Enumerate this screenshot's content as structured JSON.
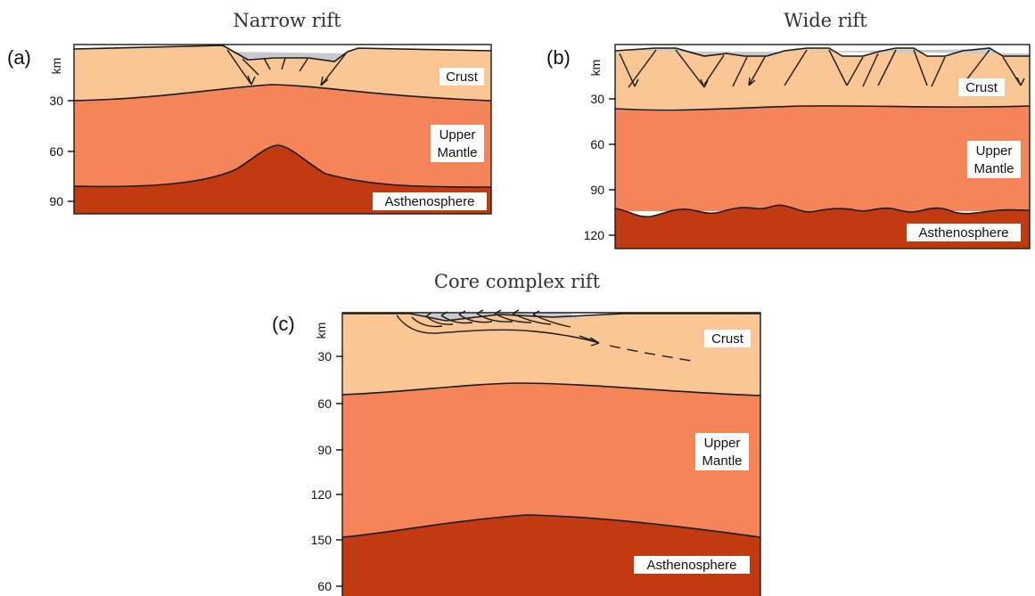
{
  "colors": {
    "crust": "#f9c694",
    "upper_mantle": "#f58458",
    "asthenosphere": "#c23a10",
    "sediment": "#c6cacf",
    "outline": "#1a1a1a"
  },
  "panels": [
    {
      "id": "a",
      "label": "(a)",
      "title": "Narrow rift",
      "unit": "km",
      "ticks": [
        "30",
        "60",
        "90"
      ],
      "layers": {
        "crust": "Crust",
        "upper_mantle": [
          "Upper",
          "Mantle"
        ],
        "asthenosphere": "Asthenosphere"
      }
    },
    {
      "id": "b",
      "label": "(b)",
      "title": "Wide rift",
      "unit": "km",
      "ticks": [
        "30",
        "60",
        "90",
        "120"
      ],
      "layers": {
        "crust": "Crust",
        "upper_mantle": [
          "Upper",
          "Mantle"
        ],
        "asthenosphere": "Asthenosphere"
      }
    },
    {
      "id": "c",
      "label": "(c)",
      "title": "Core complex rift",
      "unit": "km",
      "ticks": [
        "30",
        "60",
        "90",
        "120",
        "150",
        "60"
      ],
      "layers": {
        "crust": "Crust",
        "upper_mantle": [
          "Upper",
          "Mantle"
        ],
        "asthenosphere": "Asthenosphere"
      }
    }
  ]
}
